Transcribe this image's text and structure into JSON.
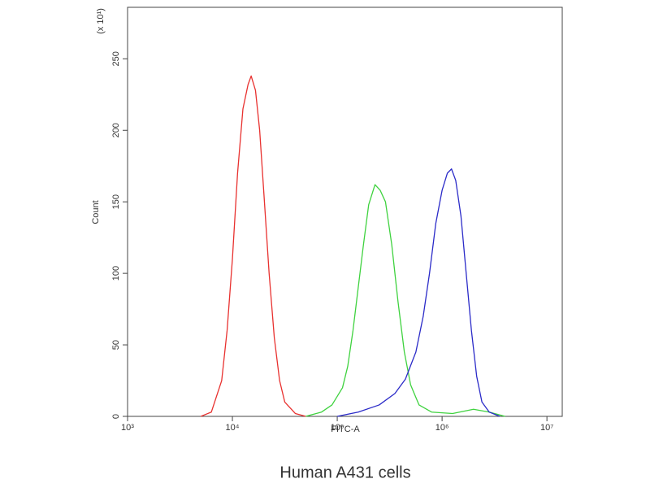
{
  "chart_data": {
    "type": "line",
    "title": "Human A431 cells",
    "x_label": "FITC-A",
    "y_label": "Count",
    "y_scale_label": "(x 10¹)",
    "x_scale": "log",
    "xlim": [
      1000,
      14000000
    ],
    "ylim": [
      0,
      286
    ],
    "xticks": [
      {
        "value": 1000,
        "label": "10³"
      },
      {
        "value": 10000,
        "label": "10⁴"
      },
      {
        "value": 100000,
        "label": "10⁵"
      },
      {
        "value": 1000000,
        "label": "10⁶"
      },
      {
        "value": 10000000,
        "label": "10⁷"
      }
    ],
    "yticks": [
      0,
      50,
      100,
      150,
      200,
      250
    ],
    "grid": false,
    "series": [
      {
        "color": "#e8312f",
        "x": [
          5000,
          6300,
          7900,
          8900,
          10000,
          11200,
          12600,
          14100,
          15100,
          16600,
          18200,
          20000,
          22400,
          25100,
          28200,
          31600,
          39800,
          50100
        ],
        "values": [
          0,
          3,
          25,
          60,
          110,
          170,
          215,
          232,
          238,
          228,
          200,
          155,
          100,
          55,
          25,
          10,
          2,
          0
        ]
      },
      {
        "color": "#3fd23f",
        "x": [
          50100,
          70800,
          89100,
          112200,
          125900,
          141300,
          158500,
          177800,
          199500,
          229100,
          257000,
          288400,
          331100,
          380200,
          436500,
          501200,
          602600,
          794300,
          1259000,
          1995000,
          2818000,
          3981000
        ],
        "values": [
          0,
          3,
          8,
          20,
          35,
          60,
          90,
          120,
          148,
          162,
          158,
          150,
          120,
          80,
          45,
          22,
          8,
          3,
          2,
          5,
          3,
          0
        ]
      },
      {
        "color": "#2b2bc8",
        "x": [
          100000,
          158500,
          251200,
          354800,
          446700,
          562300,
          660700,
          758600,
          871000,
          1000000,
          1122000,
          1230000,
          1349000,
          1514000,
          1698000,
          1905000,
          2138000,
          2399000,
          2818000,
          3548000
        ],
        "values": [
          0,
          3,
          8,
          16,
          26,
          45,
          70,
          100,
          135,
          158,
          170,
          173,
          165,
          140,
          100,
          60,
          28,
          10,
          3,
          0
        ]
      }
    ]
  }
}
